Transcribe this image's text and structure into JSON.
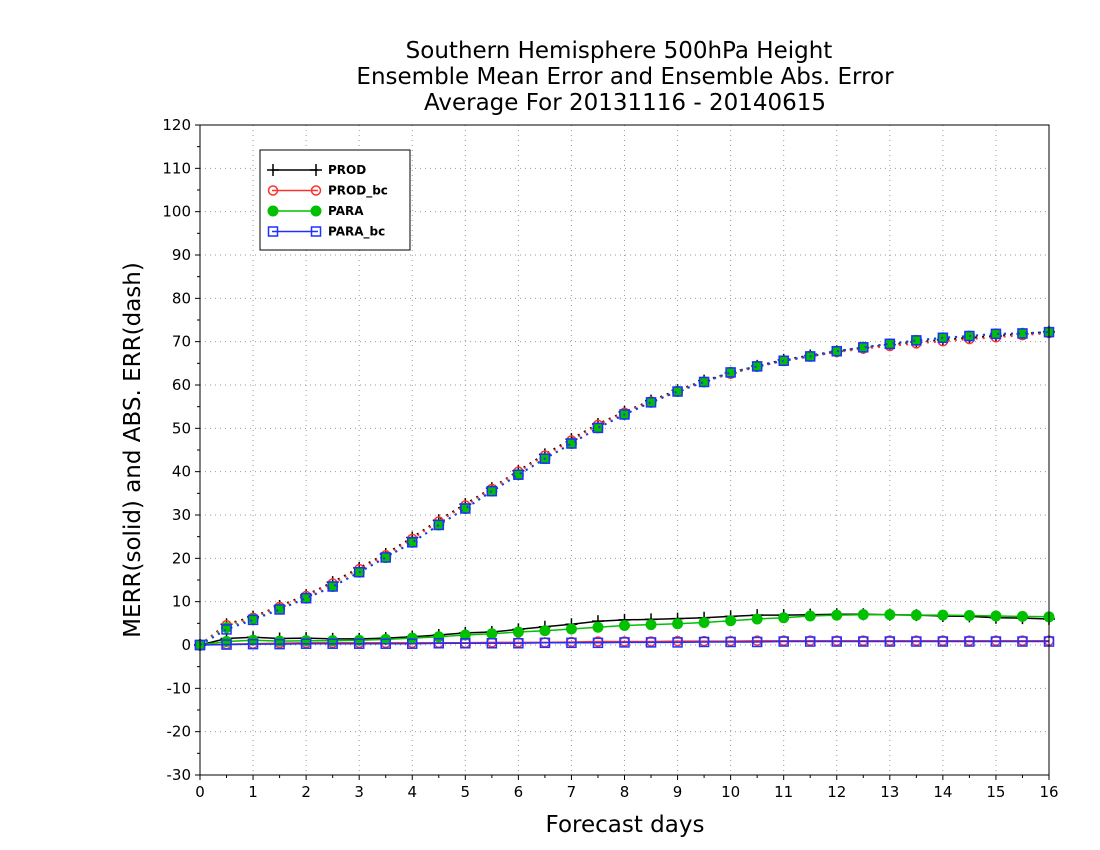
{
  "chart_data": {
    "type": "line",
    "title_lines": [
      "Southern Hemisphere 500hPa Height",
      "Ensemble Mean Error and Ensemble Abs. Error",
      "Average For 20131116 - 20140615"
    ],
    "xlabel": "Forecast days",
    "ylabel": "MERR(solid) and ABS. ERR(dash)",
    "xlim": [
      0,
      16
    ],
    "ylim": [
      -30,
      120
    ],
    "xticks": [
      "0",
      "1",
      "2",
      "3",
      "4",
      "5",
      "6",
      "7",
      "8",
      "9",
      "10",
      "11",
      "12",
      "13",
      "14",
      "15",
      "16"
    ],
    "yticks": [
      "-30",
      "-20",
      "-10",
      "0",
      "10",
      "20",
      "30",
      "40",
      "50",
      "60",
      "70",
      "80",
      "90",
      "100",
      "110",
      "120"
    ],
    "grid": true,
    "legend_position": "top-left",
    "x": [
      0,
      0.5,
      1,
      1.5,
      2,
      2.5,
      3,
      3.5,
      4,
      4.5,
      5,
      5.5,
      6,
      6.5,
      7,
      7.5,
      8,
      8.5,
      9,
      9.5,
      10,
      10.5,
      11,
      11.5,
      12,
      12.5,
      13,
      13.5,
      14,
      14.5,
      15,
      15.5,
      16
    ],
    "series": [
      {
        "name": "PROD",
        "color": "#000000",
        "marker": "plus",
        "line": "solid",
        "measure": "mean error",
        "values": [
          0,
          1.5,
          1.8,
          1.5,
          1.6,
          1.4,
          1.4,
          1.6,
          1.9,
          2.3,
          2.8,
          3.0,
          3.6,
          4.2,
          4.8,
          5.5,
          5.8,
          5.9,
          6.1,
          6.3,
          6.6,
          6.9,
          6.9,
          7.0,
          7.1,
          7.1,
          7.0,
          6.9,
          6.7,
          6.6,
          6.3,
          6.2,
          6.0
        ]
      },
      {
        "name": "PROD_bc",
        "color": "#ff3030",
        "marker": "circle-open",
        "line": "solid",
        "measure": "mean error",
        "values": [
          0,
          0.2,
          0.3,
          0.4,
          0.5,
          0.5,
          0.5,
          0.5,
          0.5,
          0.5,
          0.5,
          0.6,
          0.6,
          0.6,
          0.7,
          0.8,
          0.8,
          0.8,
          0.9,
          0.9,
          0.9,
          1.0,
          1.0,
          1.0,
          1.0,
          1.0,
          1.0,
          1.0,
          1.0,
          1.0,
          1.0,
          1.0,
          1.0
        ]
      },
      {
        "name": "PARA",
        "color": "#00c000",
        "marker": "circle-filled",
        "line": "solid",
        "measure": "mean error",
        "values": [
          0,
          0.8,
          1.1,
          0.9,
          1.0,
          1.0,
          1.1,
          1.3,
          1.6,
          1.9,
          2.3,
          2.6,
          3.0,
          3.3,
          3.7,
          4.1,
          4.5,
          4.7,
          4.9,
          5.2,
          5.6,
          6.0,
          6.3,
          6.7,
          6.9,
          7.0,
          7.0,
          6.9,
          6.9,
          6.8,
          6.7,
          6.6,
          6.5
        ]
      },
      {
        "name": "PARA_bc",
        "color": "#2030ff",
        "marker": "square-open",
        "line": "solid",
        "measure": "mean error",
        "values": [
          0,
          0.1,
          0.2,
          0.2,
          0.3,
          0.3,
          0.3,
          0.3,
          0.3,
          0.4,
          0.4,
          0.4,
          0.4,
          0.5,
          0.5,
          0.5,
          0.6,
          0.6,
          0.6,
          0.7,
          0.7,
          0.7,
          0.8,
          0.8,
          0.8,
          0.8,
          0.8,
          0.8,
          0.8,
          0.8,
          0.8,
          0.8,
          0.8
        ]
      },
      {
        "name": "PROD",
        "color": "#000000",
        "marker": "plus",
        "line": "dash",
        "measure": "abs. error",
        "values": [
          0,
          4.8,
          6.5,
          9.0,
          11.5,
          14.5,
          17.8,
          21.0,
          24.8,
          28.8,
          32.5,
          36.2,
          40.2,
          44.0,
          47.5,
          51.0,
          53.8,
          56.4,
          58.8,
          61.0,
          62.8,
          64.4,
          65.8,
          66.8,
          67.8,
          68.6,
          69.3,
          69.9,
          70.4,
          70.9,
          71.3,
          71.8,
          72.3
        ]
      },
      {
        "name": "PROD_bc",
        "color": "#ff3030",
        "marker": "circle-open",
        "line": "dash",
        "measure": "abs. error",
        "values": [
          0,
          4.6,
          6.3,
          8.8,
          11.3,
          14.2,
          17.5,
          20.7,
          24.5,
          28.5,
          32.2,
          36.0,
          40.0,
          43.7,
          47.2,
          50.8,
          53.6,
          56.2,
          58.6,
          60.8,
          62.6,
          64.2,
          65.6,
          66.6,
          67.6,
          68.4,
          69.0,
          69.6,
          70.1,
          70.6,
          71.0,
          71.5,
          72.0
        ]
      },
      {
        "name": "PARA",
        "color": "#00c000",
        "marker": "circle-filled",
        "line": "dash",
        "measure": "abs. error",
        "values": [
          0,
          4.0,
          6.0,
          8.3,
          10.8,
          13.5,
          16.8,
          20.2,
          23.7,
          27.7,
          31.5,
          35.5,
          39.3,
          43.0,
          46.5,
          50.1,
          53.2,
          56.0,
          58.5,
          60.7,
          62.9,
          64.3,
          65.6,
          66.6,
          67.8,
          68.7,
          69.5,
          70.3,
          70.9,
          71.3,
          71.8,
          71.9,
          72.2
        ]
      },
      {
        "name": "PARA_bc",
        "color": "#2030ff",
        "marker": "square-open",
        "line": "dash",
        "measure": "abs. error",
        "values": [
          0,
          3.6,
          5.8,
          8.2,
          10.8,
          13.5,
          16.8,
          20.2,
          23.7,
          27.7,
          31.5,
          35.5,
          39.3,
          43.0,
          46.5,
          50.1,
          53.2,
          56.0,
          58.5,
          60.7,
          62.9,
          64.3,
          65.6,
          66.6,
          67.8,
          68.7,
          69.5,
          70.3,
          70.9,
          71.3,
          71.8,
          71.9,
          72.2
        ]
      }
    ],
    "legend": [
      {
        "label": "PROD",
        "color": "#000000",
        "marker": "plus"
      },
      {
        "label": "PROD_bc",
        "color": "#ff3030",
        "marker": "circle-open"
      },
      {
        "label": "PARA",
        "color": "#00c000",
        "marker": "circle-filled"
      },
      {
        "label": "PARA_bc",
        "color": "#2030ff",
        "marker": "square-open"
      }
    ]
  }
}
